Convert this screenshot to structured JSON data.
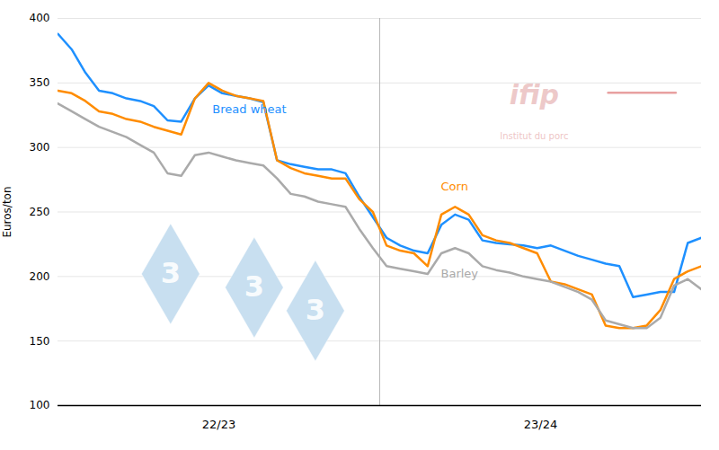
{
  "chart_data": {
    "type": "line",
    "ylabel": "Euros/ton",
    "categories": [
      null,
      null,
      null,
      null,
      null,
      null,
      null,
      null,
      null,
      null,
      null,
      null,
      null,
      null,
      null,
      null,
      null,
      null,
      null,
      null,
      null,
      null,
      null,
      null,
      null,
      null,
      null,
      null,
      null,
      null,
      null,
      null,
      null,
      null,
      null,
      null,
      null,
      null,
      null,
      null,
      null,
      null,
      null,
      null,
      null,
      null,
      null,
      null
    ],
    "series": [
      {
        "name": "Bread wheat",
        "color": "#1e90ff",
        "values": [
          388,
          376,
          358,
          344,
          342,
          338,
          336,
          332,
          321,
          320,
          338,
          348,
          342,
          340,
          338,
          335,
          290,
          287,
          285,
          283,
          283,
          280,
          262,
          246,
          230,
          224,
          220,
          218,
          240,
          248,
          244,
          228,
          226,
          225,
          224,
          222,
          224,
          220,
          216,
          213,
          210,
          208,
          184,
          186,
          188,
          188,
          226,
          230
        ]
      },
      {
        "name": "Corn",
        "color": "#FF8C00",
        "values": [
          344,
          342,
          336,
          328,
          326,
          322,
          320,
          316,
          313,
          310,
          338,
          350,
          344,
          340,
          338,
          336,
          290,
          284,
          280,
          278,
          276,
          276,
          260,
          250,
          224,
          220,
          218,
          208,
          248,
          254,
          248,
          232,
          228,
          226,
          222,
          218,
          196,
          194,
          190,
          186,
          162,
          160,
          160,
          162,
          174,
          198,
          204,
          208
        ]
      },
      {
        "name": "Barley",
        "color": "#aaaaaa",
        "values": [
          334,
          328,
          322,
          316,
          312,
          308,
          302,
          296,
          280,
          278,
          294,
          296,
          293,
          290,
          288,
          286,
          276,
          264,
          262,
          258,
          256,
          254,
          237,
          222,
          208,
          206,
          204,
          202,
          218,
          222,
          218,
          208,
          205,
          203,
          200,
          198,
          196,
          192,
          188,
          182,
          166,
          163,
          160,
          160,
          168,
          193,
          198,
          190
        ]
      }
    ],
    "ylim": [
      100,
      400
    ],
    "yticks": [
      100,
      150,
      200,
      250,
      300,
      350,
      400
    ],
    "grid": true,
    "tick_labels": "y",
    "annotations": [
      "22/23",
      "23/24",
      "3",
      "3",
      "3",
      "ifip",
      "Institut du porc"
    ]
  }
}
